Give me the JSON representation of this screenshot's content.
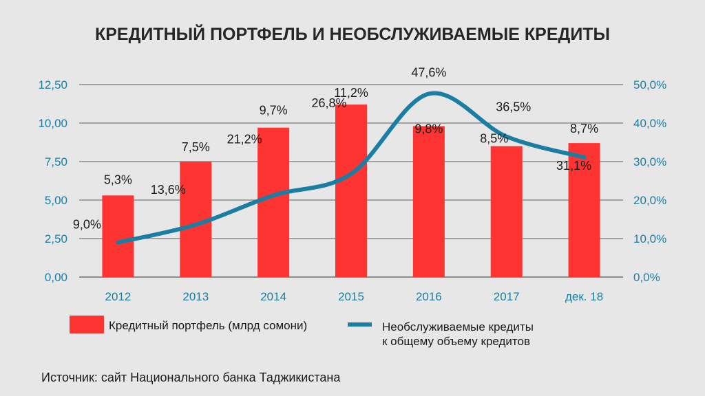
{
  "chart_data": {
    "type": "bar+line",
    "title": "КРЕДИТНЫЙ ПОРТФЕЛЬ И НЕОБСЛУЖИВАЕМЫЕ КРЕДИТЫ",
    "categories": [
      "2012",
      "2013",
      "2014",
      "2015",
      "2016",
      "2017",
      "дек. 18"
    ],
    "series": [
      {
        "name": "Кредитный портфель (млрд сомони)",
        "type": "bar",
        "axis": "left",
        "color": "#fe3433",
        "values": [
          5.3,
          7.5,
          9.7,
          11.2,
          9.8,
          8.5,
          8.7
        ],
        "labels": [
          "5,3%",
          "7,5%",
          "9,7%",
          "11,2%",
          "9,8%",
          "8,5%",
          "8,7%"
        ]
      },
      {
        "name_line1": "Необслуживаемые  кредиты",
        "name_line2": "к общему объему кредитов",
        "type": "line",
        "axis": "right",
        "color": "#1a7ea3",
        "values": [
          9.0,
          13.6,
          21.2,
          26.8,
          47.6,
          36.5,
          31.1
        ],
        "labels": [
          "9,0%",
          "13,6%",
          "21,2%",
          "26,8%",
          "47,6%",
          "36,5%",
          "31,1%"
        ]
      }
    ],
    "left_axis": {
      "ylim": [
        0,
        12.5
      ],
      "ticks": [
        "0,00",
        "2,50",
        "5,00",
        "7,50",
        "10,00",
        "12,50"
      ]
    },
    "right_axis": {
      "ylim": [
        0,
        50
      ],
      "ticks": [
        "0,0%",
        "10,0%",
        "20,0%",
        "30,0%",
        "40,0%",
        "50,0%"
      ]
    },
    "grid": true,
    "legend": "bottom"
  },
  "source": "Источник: сайт Национального банка Таджикистана"
}
